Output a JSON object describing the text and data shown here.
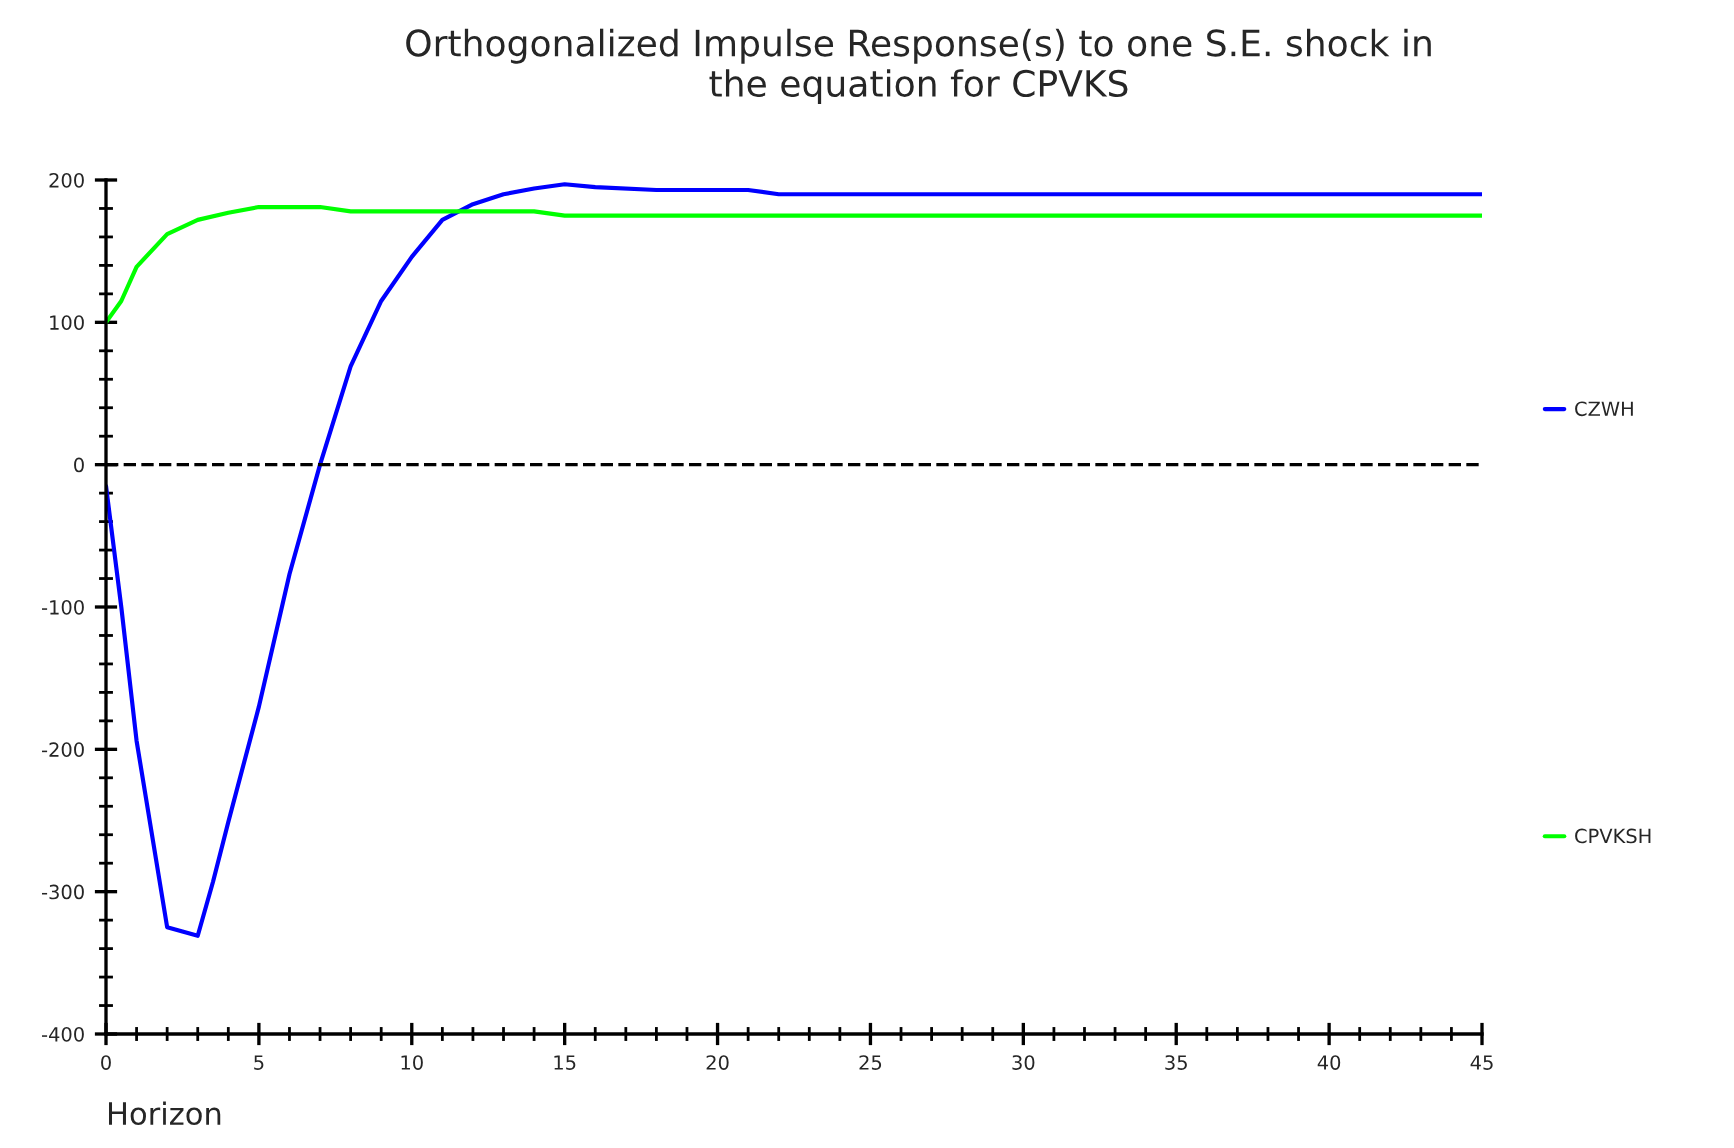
{
  "chart_data": {
    "type": "line",
    "title": "Orthogonalized Impulse Response(s) to one S.E. shock in\nthe equation for CPVKS",
    "xlabel": "Horizon",
    "xlim": [
      0,
      45
    ],
    "xticks": [
      0,
      5,
      10,
      15,
      20,
      25,
      30,
      35,
      40,
      45
    ],
    "ylim": [
      -400,
      200
    ],
    "yticks": [
      -400,
      -300,
      -200,
      -100,
      0,
      100,
      200
    ],
    "series": [
      {
        "name": "CZWH",
        "color": "#0000ff",
        "x": [
          0,
          0.5,
          1,
          2,
          2.5,
          3,
          3.5,
          4,
          5,
          6,
          7,
          8,
          9,
          10,
          11,
          12,
          13,
          14,
          15,
          16,
          18,
          21,
          22,
          30,
          45
        ],
        "values": [
          -15,
          -100,
          -194,
          -325,
          -328,
          -331,
          -293,
          -251,
          -170,
          -77,
          0,
          69,
          115,
          146,
          172,
          183,
          190,
          194,
          197,
          195,
          193,
          193,
          190,
          190,
          190
        ]
      },
      {
        "name": "CPVKSH",
        "color": "#00ff00",
        "x": [
          0,
          0.5,
          1,
          2,
          3,
          4,
          5,
          7,
          8,
          14,
          15,
          45
        ],
        "values": [
          100,
          115,
          139,
          162,
          172,
          177,
          181,
          181,
          178,
          178,
          175,
          175
        ]
      }
    ],
    "ref_lines": [
      {
        "axis": "y",
        "value": 0,
        "color": "#000000",
        "line_style": "dashed"
      }
    ],
    "legend": "right",
    "grid": false,
    "marker": "none",
    "line_style": "solid"
  }
}
